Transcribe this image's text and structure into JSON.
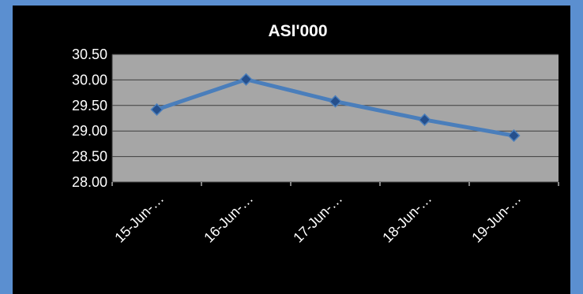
{
  "colors": {
    "page_background": "#5b8fd0",
    "chart_background": "#000000",
    "plot_area": "#a6a6a6",
    "gridline": "#3f3f3f",
    "series_line": "#4a7ebb",
    "marker_fill": "#254f8c",
    "text": "#ffffff"
  },
  "chart_data": {
    "type": "line",
    "title": "ASI'000",
    "xlabel": "",
    "ylabel": "",
    "categories": [
      "15-Jun-…",
      "16-Jun-…",
      "17-Jun-…",
      "18-Jun-…",
      "19-Jun-…"
    ],
    "series": [
      {
        "values": [
          29.42,
          30.01,
          29.58,
          29.22,
          28.91
        ],
        "marker": "diamond"
      }
    ],
    "ylim": [
      28.0,
      30.5
    ],
    "yticks": [
      "28.00",
      "28.50",
      "29.00",
      "29.50",
      "30.00",
      "30.50"
    ],
    "ytick_values": [
      28.0,
      28.5,
      29.0,
      29.5,
      30.0,
      30.5
    ],
    "grid": true,
    "legend": "none"
  }
}
